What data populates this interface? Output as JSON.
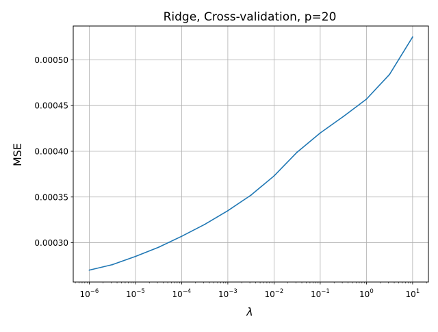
{
  "chart_data": {
    "type": "line",
    "title": "Ridge, Cross-validation, p=20",
    "xlabel": "λ",
    "ylabel": "MSE",
    "x_scale": "log",
    "xlim": [
      4.5e-07,
      22.0
    ],
    "ylim": [
      0.000257,
      0.000537
    ],
    "grid": true,
    "x_ticks": [
      {
        "value": 1e-06,
        "base": "10",
        "exp": "−6"
      },
      {
        "value": 1e-05,
        "base": "10",
        "exp": "−5"
      },
      {
        "value": 0.0001,
        "base": "10",
        "exp": "−4"
      },
      {
        "value": 0.001,
        "base": "10",
        "exp": "−3"
      },
      {
        "value": 0.01,
        "base": "10",
        "exp": "−2"
      },
      {
        "value": 0.1,
        "base": "10",
        "exp": "−1"
      },
      {
        "value": 1.0,
        "base": "10",
        "exp": "0"
      },
      {
        "value": 10.0,
        "base": "10",
        "exp": "1"
      }
    ],
    "y_ticks": [
      {
        "value": 0.0003,
        "label": "0.00030"
      },
      {
        "value": 0.00035,
        "label": "0.00035"
      },
      {
        "value": 0.0004,
        "label": "0.00040"
      },
      {
        "value": 0.00045,
        "label": "0.00045"
      },
      {
        "value": 0.0005,
        "label": "0.00050"
      }
    ],
    "series": [
      {
        "color": "#1f77b4",
        "x": [
          1e-06,
          3.16e-06,
          1e-05,
          3.16e-05,
          0.0001,
          0.000316,
          0.001,
          0.00316,
          0.01,
          0.0316,
          0.1,
          0.316,
          1.0,
          3.16,
          10.0
        ],
        "y": [
          0.00027,
          0.000276,
          0.000285,
          0.000295,
          0.000307,
          0.00032,
          0.000335,
          0.000352,
          0.000373,
          0.000399,
          0.00042,
          0.000438,
          0.000457,
          0.000484,
          0.000525
        ]
      }
    ]
  }
}
